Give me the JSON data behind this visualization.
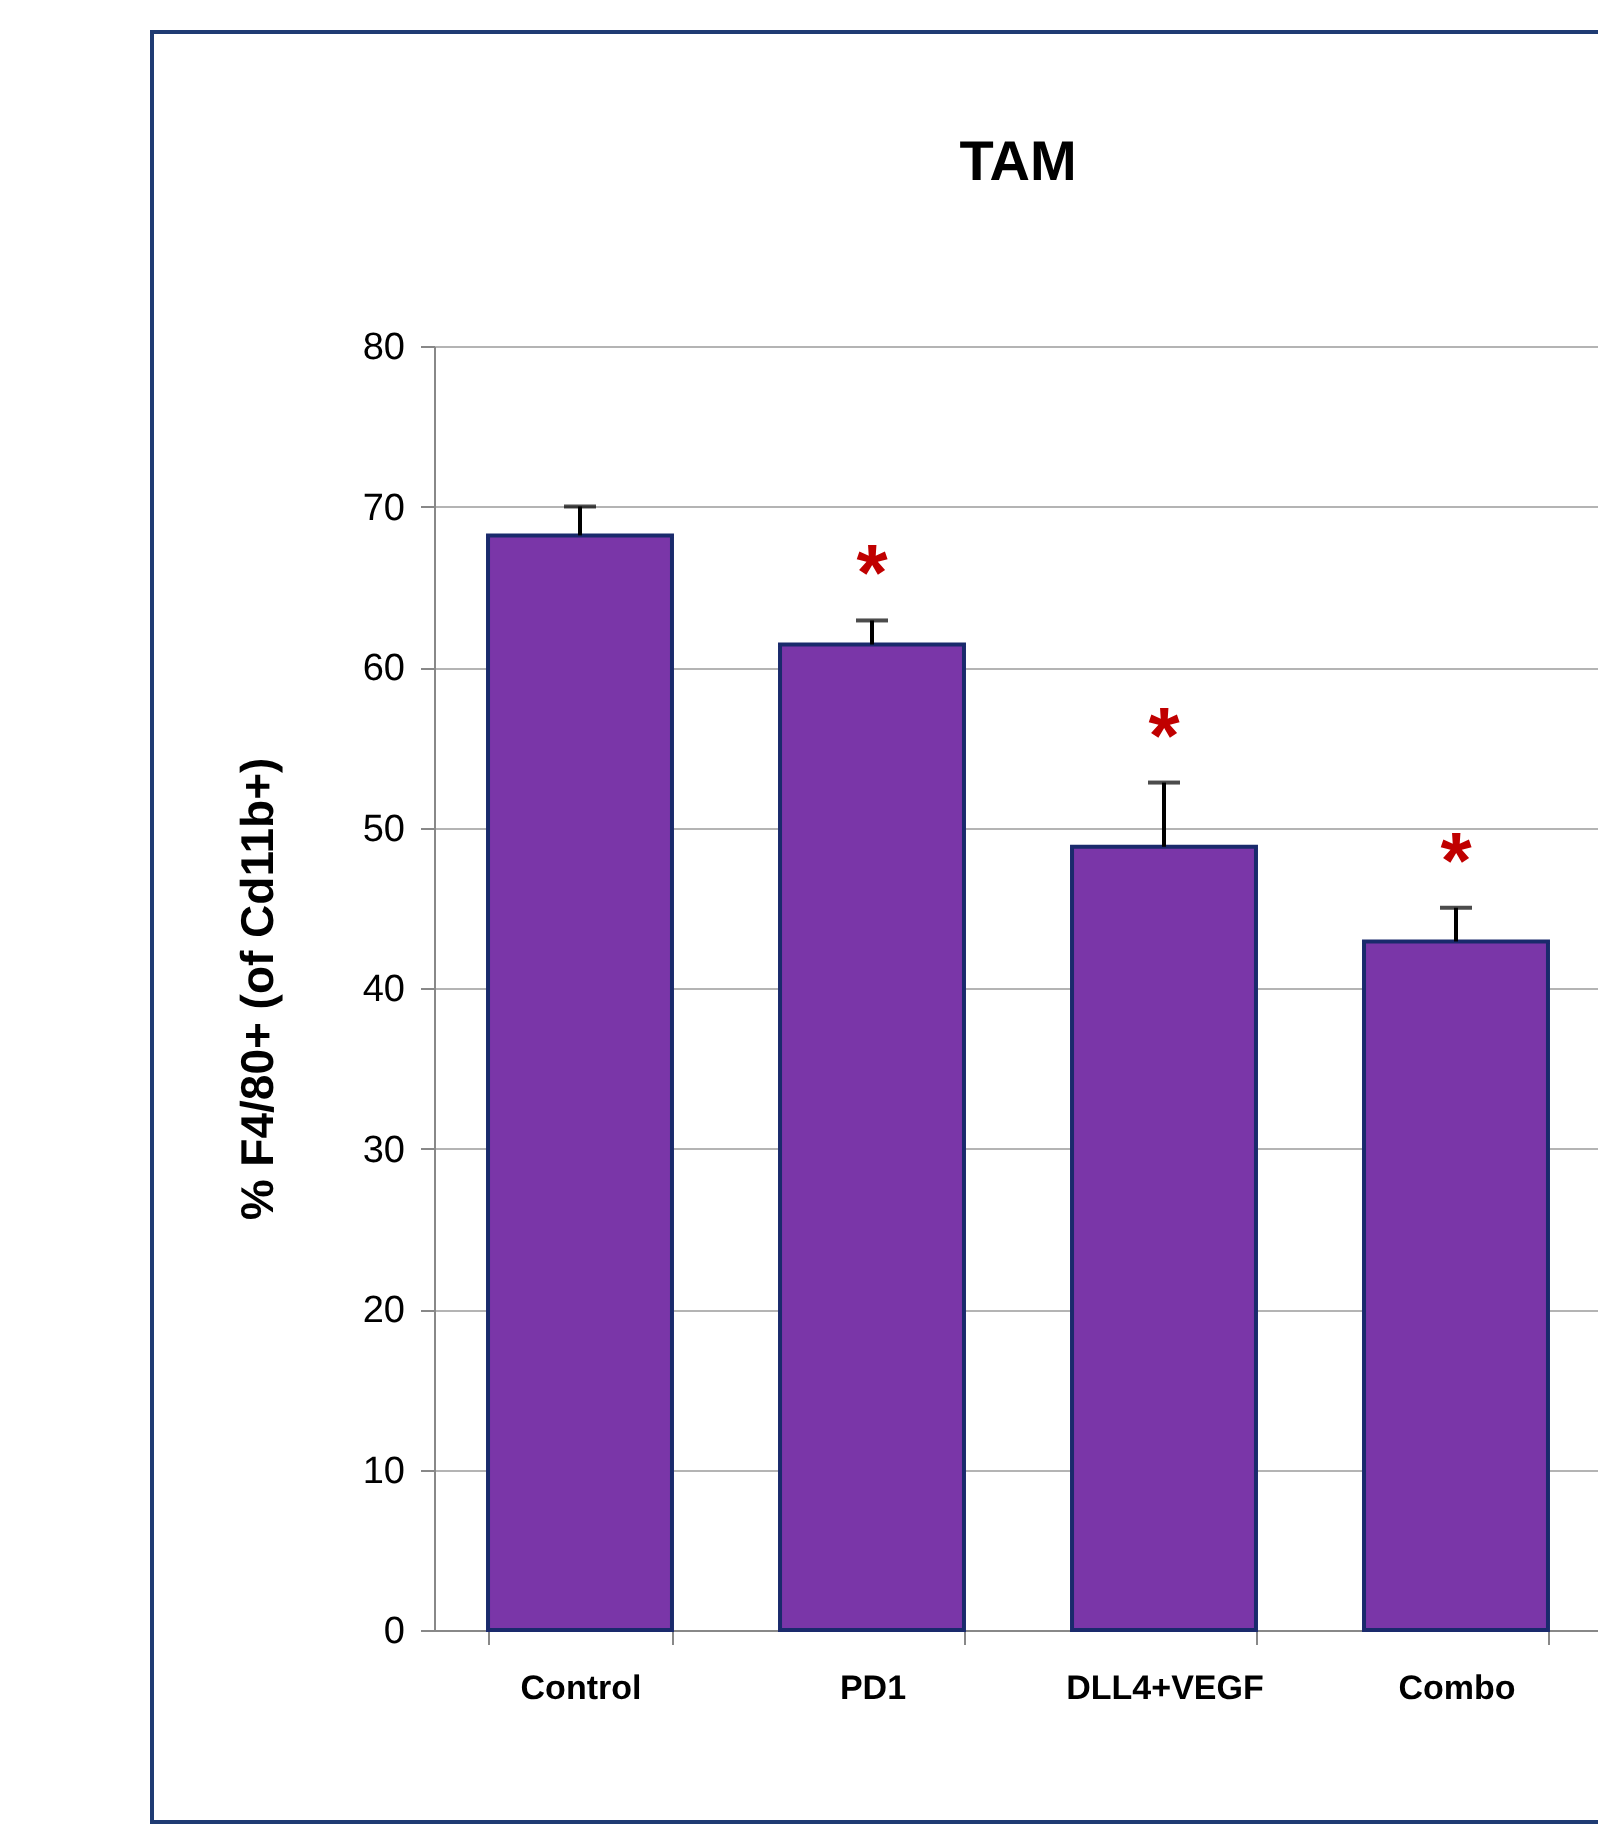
{
  "chart_data": {
    "type": "bar",
    "title": "TAM",
    "ylabel": "% F4/80+ (of Cd11b+)",
    "categories": [
      "Control",
      "PD1",
      "DLL4+VEGF",
      "Combo"
    ],
    "values": [
      68.2,
      61.4,
      48.8,
      42.9
    ],
    "color": "#7a36a8",
    "errors": [
      [
        68.2,
        70.0
      ],
      [
        61.4,
        62.9
      ],
      [
        48.8,
        52.8
      ],
      [
        42.9,
        45.0
      ]
    ],
    "ylim": [
      0,
      80
    ],
    "yticks": [
      0,
      10,
      20,
      30,
      40,
      50,
      60,
      70,
      80
    ],
    "grid": "y",
    "annotations": [
      "*",
      "*",
      "*"
    ]
  }
}
